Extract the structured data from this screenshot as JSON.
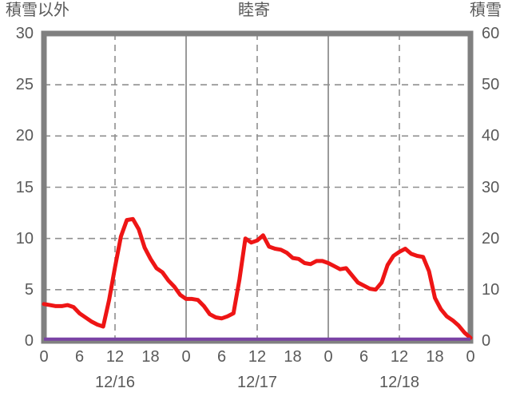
{
  "chart_data": {
    "type": "line",
    "title": "睦寄",
    "left_axis": {
      "label": "積雪以外",
      "min": 0,
      "max": 30,
      "ticks": [
        0,
        5,
        10,
        15,
        20,
        25,
        30
      ]
    },
    "right_axis": {
      "label": "積雪",
      "min": 0,
      "max": 60,
      "ticks": [
        0,
        10,
        20,
        30,
        40,
        50,
        60
      ]
    },
    "x_axis": {
      "total_hours": 72,
      "hour_tick_interval": 6,
      "hour_tick_labels": [
        "0",
        "6",
        "12",
        "18",
        "0",
        "6",
        "12",
        "18",
        "0",
        "6",
        "12",
        "18",
        "0"
      ],
      "date_labels": [
        "12/16",
        "12/17",
        "12/18"
      ],
      "solid_gridline_hours": [
        24,
        48
      ],
      "dashed_gridline_hours": [
        12,
        36,
        60
      ]
    },
    "grid": {
      "horizontal_dashed_at_left_values": [
        5,
        10,
        15,
        20,
        25
      ]
    },
    "series": [
      {
        "name": "積雪以外",
        "axis": "left",
        "color": "#ee1515",
        "hourly_values": [
          3.6,
          3.5,
          3.4,
          3.4,
          3.5,
          3.3,
          2.7,
          2.3,
          1.9,
          1.6,
          1.4,
          4.0,
          7.2,
          10.2,
          11.8,
          11.9,
          10.9,
          9.1,
          8.0,
          7.1,
          6.7,
          5.9,
          5.3,
          4.5,
          4.1,
          4.1,
          4.0,
          3.4,
          2.6,
          2.3,
          2.2,
          2.4,
          2.7,
          6.0,
          10.0,
          9.6,
          9.8,
          10.3,
          9.2,
          9.0,
          8.9,
          8.6,
          8.1,
          8.0,
          7.6,
          7.5,
          7.8,
          7.8,
          7.6,
          7.3,
          7.0,
          7.1,
          6.4,
          5.7,
          5.4,
          5.1,
          5.0,
          5.7,
          7.4,
          8.3,
          8.7,
          9.0,
          8.5,
          8.3,
          8.2,
          6.8,
          4.2,
          3.1,
          2.4,
          2.0,
          1.5,
          0.8,
          0.3
        ]
      },
      {
        "name": "積雪",
        "axis": "right",
        "color": "#7a43a5",
        "constant_value": 0
      }
    ]
  },
  "colors": {
    "plot_border": "#808080",
    "gridline": "#8f8f8f",
    "tick_text": "#595959",
    "background": "#ffffff"
  }
}
